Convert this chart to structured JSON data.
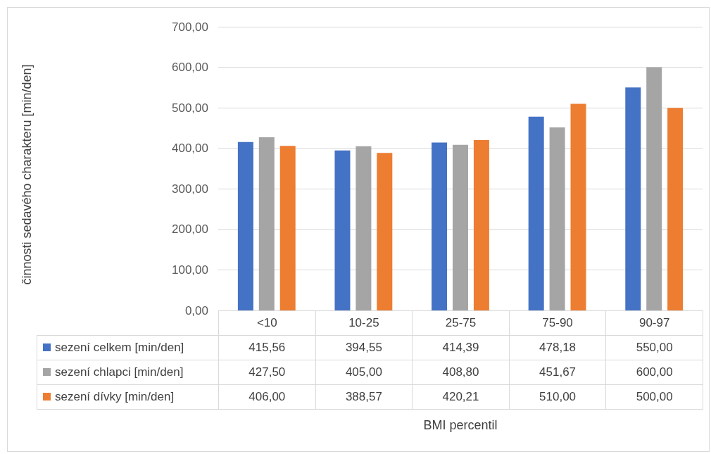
{
  "chart_data": {
    "type": "bar",
    "annotations": [
      "BMI percentil",
      "činnosti sedavého charakteru  [min/den]"
    ],
    "categories": [
      "<10",
      "10-25",
      "25-75",
      "75-90",
      "90-97"
    ],
    "series": [
      {
        "name": "sezení celkem [min/den]",
        "color": "#4472c4",
        "values": [
          415.56,
          394.55,
          414.39,
          478.18,
          550.0
        ],
        "value_labels": [
          "415,56",
          "394,55",
          "414,39",
          "478,18",
          "550,00"
        ]
      },
      {
        "name": "sezení chlapci [min/den]",
        "color": "#a5a5a5",
        "values": [
          427.5,
          405.0,
          408.8,
          451.67,
          600.0
        ],
        "value_labels": [
          "427,50",
          "405,00",
          "408,80",
          "451,67",
          "600,00"
        ]
      },
      {
        "name": "sezení dívky [min/den]",
        "color": "#ed7d31",
        "values": [
          406.0,
          388.57,
          420.21,
          510.0,
          500.0
        ],
        "value_labels": [
          "406,00",
          "388,57",
          "420,21",
          "510,00",
          "500,00"
        ]
      }
    ],
    "ylim": [
      0,
      700
    ],
    "yticks": [
      {
        "value": 0,
        "label": "0,00"
      },
      {
        "value": 100,
        "label": "100,00"
      },
      {
        "value": 200,
        "label": "200,00"
      },
      {
        "value": 300,
        "label": "300,00"
      },
      {
        "value": 400,
        "label": "400,00"
      },
      {
        "value": 500,
        "label": "500,00"
      },
      {
        "value": 600,
        "label": "600,00"
      },
      {
        "value": 700,
        "label": "700,00"
      }
    ],
    "grid": "y",
    "legend": "bottom"
  }
}
